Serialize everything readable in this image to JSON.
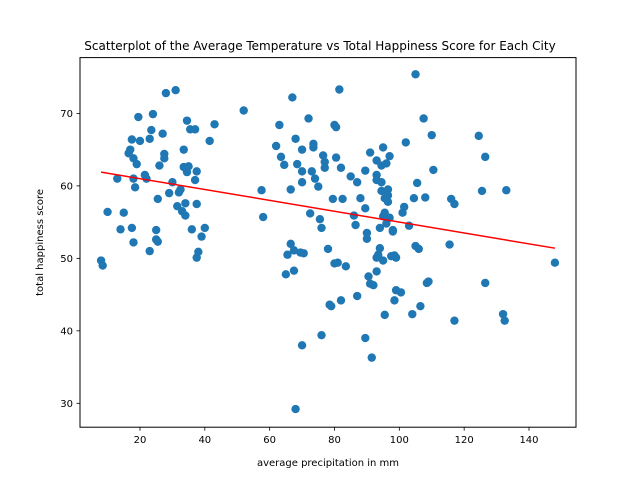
{
  "chart_data": {
    "type": "scatter",
    "title": "Scatterplot of the Average Temperature vs Total Happiness Score for Each City",
    "xlabel": "average precipitation in mm",
    "ylabel": "total happiness score",
    "xlim": [
      1.5,
      154.5
    ],
    "ylim": [
      26.7,
      77.7
    ],
    "x_ticks": [
      20,
      40,
      60,
      80,
      100,
      120,
      140
    ],
    "y_ticks": [
      30,
      40,
      50,
      60,
      70
    ],
    "grid": false,
    "point_color": "#1f77b4",
    "trend_color": "#ff0000",
    "trend_line": {
      "x": [
        8,
        148
      ],
      "y": [
        61.9,
        51.4
      ]
    },
    "points": [
      [
        8,
        49.7
      ],
      [
        8.5,
        49
      ],
      [
        10,
        56.4
      ],
      [
        13,
        61
      ],
      [
        14,
        54
      ],
      [
        15,
        56.3
      ],
      [
        16.5,
        64.5
      ],
      [
        17,
        65
      ],
      [
        17.5,
        66.4
      ],
      [
        17.5,
        54.2
      ],
      [
        18,
        52.2
      ],
      [
        18,
        61
      ],
      [
        18,
        63.8
      ],
      [
        18.5,
        59.8
      ],
      [
        19,
        63
      ],
      [
        19.5,
        69.5
      ],
      [
        20,
        66.2
      ],
      [
        21.5,
        61.5
      ],
      [
        22,
        61
      ],
      [
        23,
        66.5
      ],
      [
        23,
        51
      ],
      [
        23.5,
        67.7
      ],
      [
        24,
        69.9
      ],
      [
        25,
        53.9
      ],
      [
        25,
        52.6
      ],
      [
        25.5,
        58.2
      ],
      [
        25.5,
        52.3
      ],
      [
        26,
        62.8
      ],
      [
        27,
        67.2
      ],
      [
        27.5,
        64.4
      ],
      [
        27.5,
        63.8
      ],
      [
        28,
        72.8
      ],
      [
        29,
        59
      ],
      [
        30,
        60.5
      ],
      [
        31,
        73.2
      ],
      [
        31.5,
        57.2
      ],
      [
        32,
        59.1
      ],
      [
        32.5,
        59.5
      ],
      [
        33,
        56.5
      ],
      [
        33.5,
        65
      ],
      [
        33.5,
        62.6
      ],
      [
        34,
        55.9
      ],
      [
        34,
        57.6
      ],
      [
        34.5,
        61.9
      ],
      [
        34.5,
        69
      ],
      [
        35,
        62.7
      ],
      [
        35.5,
        67.8
      ],
      [
        36,
        54
      ],
      [
        37,
        67.8
      ],
      [
        37,
        60.8
      ],
      [
        37.5,
        62
      ],
      [
        37.5,
        57.5
      ],
      [
        37.5,
        50.1
      ],
      [
        38,
        50.9
      ],
      [
        39,
        53
      ],
      [
        40,
        54.2
      ],
      [
        41.5,
        66.2
      ],
      [
        43,
        68.5
      ],
      [
        52,
        70.4
      ],
      [
        57.5,
        59.4
      ],
      [
        58,
        55.7
      ],
      [
        62,
        65.5
      ],
      [
        63,
        68.4
      ],
      [
        63.5,
        64
      ],
      [
        64.5,
        62.9
      ],
      [
        65,
        47.8
      ],
      [
        65.5,
        50.5
      ],
      [
        66.5,
        52
      ],
      [
        66.5,
        59.5
      ],
      [
        67,
        72.2
      ],
      [
        67.5,
        51.1
      ],
      [
        67.5,
        48.3
      ],
      [
        68,
        66.5
      ],
      [
        68,
        29.2
      ],
      [
        68.5,
        63
      ],
      [
        69.5,
        50.8
      ],
      [
        70,
        65
      ],
      [
        70,
        62
      ],
      [
        70,
        60.5
      ],
      [
        70,
        38
      ],
      [
        70.5,
        50.7
      ],
      [
        72,
        69.3
      ],
      [
        72.5,
        56.2
      ],
      [
        73,
        62
      ],
      [
        73.5,
        65.8
      ],
      [
        73.5,
        65.3
      ],
      [
        74,
        61
      ],
      [
        75,
        59.9
      ],
      [
        75.5,
        55.4
      ],
      [
        76,
        54.2
      ],
      [
        76,
        39.4
      ],
      [
        76.5,
        64.2
      ],
      [
        77,
        63.3
      ],
      [
        77,
        62.5
      ],
      [
        78,
        51.3
      ],
      [
        78.5,
        43.6
      ],
      [
        79,
        43.4
      ],
      [
        79.5,
        58.2
      ],
      [
        80,
        49.3
      ],
      [
        80,
        68.4
      ],
      [
        80.5,
        68.1
      ],
      [
        80.5,
        63.9
      ],
      [
        81,
        49.4
      ],
      [
        81.5,
        73.3
      ],
      [
        82,
        44.2
      ],
      [
        82,
        62.5
      ],
      [
        82.5,
        58.2
      ],
      [
        83.5,
        48.9
      ],
      [
        85,
        61.3
      ],
      [
        86,
        55.9
      ],
      [
        86.5,
        54.6
      ],
      [
        87,
        44.8
      ],
      [
        87,
        60.5
      ],
      [
        88,
        58.3
      ],
      [
        89.5,
        56.9
      ],
      [
        89.5,
        62.1
      ],
      [
        89.5,
        39
      ],
      [
        90,
        53.5
      ],
      [
        90,
        52.7
      ],
      [
        90.5,
        47.5
      ],
      [
        91,
        64.6
      ],
      [
        91,
        46.5
      ],
      [
        91.5,
        36.3
      ],
      [
        92,
        46.3
      ],
      [
        93,
        61.5
      ],
      [
        93,
        60.8
      ],
      [
        93,
        50.1
      ],
      [
        93,
        48.2
      ],
      [
        93,
        63.5
      ],
      [
        93.5,
        50.5
      ],
      [
        94,
        51.4
      ],
      [
        94,
        54.2
      ],
      [
        94.5,
        60.5
      ],
      [
        94.5,
        59.3
      ],
      [
        94.5,
        62.8
      ],
      [
        95,
        55.8
      ],
      [
        95,
        49.7
      ],
      [
        95,
        65.3
      ],
      [
        95.5,
        58.3
      ],
      [
        95.5,
        56.3
      ],
      [
        95.5,
        42.2
      ],
      [
        96,
        63.1
      ],
      [
        96,
        54.8
      ],
      [
        96.5,
        59.5
      ],
      [
        96.5,
        58.7
      ],
      [
        96.5,
        57.8
      ],
      [
        97,
        64.1
      ],
      [
        97,
        55.6
      ],
      [
        97.5,
        50.3
      ],
      [
        98,
        53.9
      ],
      [
        98,
        53.7
      ],
      [
        98.5,
        44.2
      ],
      [
        98.5,
        50.4
      ],
      [
        99,
        50.1
      ],
      [
        99,
        45.6
      ],
      [
        100.5,
        45.3
      ],
      [
        101,
        56.3
      ],
      [
        101.5,
        57.1
      ],
      [
        102,
        66
      ],
      [
        103,
        54.5
      ],
      [
        104,
        42.3
      ],
      [
        104.5,
        58.3
      ],
      [
        105,
        51.7
      ],
      [
        105,
        75.4
      ],
      [
        105.5,
        60.4
      ],
      [
        106,
        51.3
      ],
      [
        106.5,
        43.4
      ],
      [
        107.5,
        69.3
      ],
      [
        108,
        58.4
      ],
      [
        108.5,
        46.6
      ],
      [
        109,
        46.8
      ],
      [
        110,
        67
      ],
      [
        110.5,
        62.2
      ],
      [
        115.5,
        51.9
      ],
      [
        116,
        58.2
      ],
      [
        117,
        57.5
      ],
      [
        117,
        41.4
      ],
      [
        124.5,
        66.9
      ],
      [
        125.5,
        59.3
      ],
      [
        126.5,
        64
      ],
      [
        126.5,
        46.6
      ],
      [
        132,
        42.3
      ],
      [
        132.5,
        41.4
      ],
      [
        133,
        59.4
      ],
      [
        148,
        49.4
      ]
    ]
  }
}
